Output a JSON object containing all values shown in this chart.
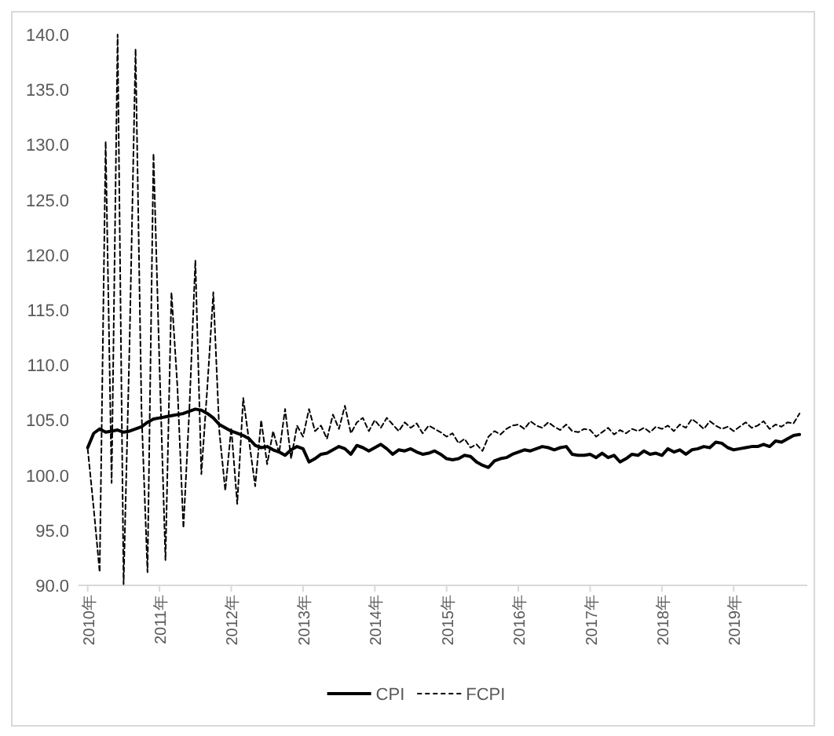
{
  "chart_data": {
    "type": "line",
    "x": [
      "2010-01",
      "2010-02",
      "2010-03",
      "2010-04",
      "2010-05",
      "2010-06",
      "2010-07",
      "2010-08",
      "2010-09",
      "2010-10",
      "2010-11",
      "2010-12",
      "2011-01",
      "2011-02",
      "2011-03",
      "2011-04",
      "2011-05",
      "2011-06",
      "2011-07",
      "2011-08",
      "2011-09",
      "2011-10",
      "2011-11",
      "2011-12",
      "2012-01",
      "2012-02",
      "2012-03",
      "2012-04",
      "2012-05",
      "2012-06",
      "2012-07",
      "2012-08",
      "2012-09",
      "2012-10",
      "2012-11",
      "2012-12",
      "2013-01",
      "2013-02",
      "2013-03",
      "2013-04",
      "2013-05",
      "2013-06",
      "2013-07",
      "2013-08",
      "2013-09",
      "2013-10",
      "2013-11",
      "2013-12",
      "2014-01",
      "2014-02",
      "2014-03",
      "2014-04",
      "2014-05",
      "2014-06",
      "2014-07",
      "2014-08",
      "2014-09",
      "2014-10",
      "2014-11",
      "2014-12",
      "2015-01",
      "2015-02",
      "2015-03",
      "2015-04",
      "2015-05",
      "2015-06",
      "2015-07",
      "2015-08",
      "2015-09",
      "2015-10",
      "2015-11",
      "2015-12",
      "2016-01",
      "2016-02",
      "2016-03",
      "2016-04",
      "2016-05",
      "2016-06",
      "2016-07",
      "2016-08",
      "2016-09",
      "2016-10",
      "2016-11",
      "2016-12",
      "2017-01",
      "2017-02",
      "2017-03",
      "2017-04",
      "2017-05",
      "2017-06",
      "2017-07",
      "2017-08",
      "2017-09",
      "2017-10",
      "2017-11",
      "2017-12",
      "2018-01",
      "2018-02",
      "2018-03",
      "2018-04",
      "2018-05",
      "2018-06",
      "2018-07",
      "2018-08",
      "2018-09",
      "2018-10",
      "2018-11",
      "2018-12",
      "2019-01",
      "2019-02",
      "2019-03",
      "2019-04",
      "2019-05",
      "2019-06",
      "2019-07",
      "2019-08",
      "2019-09",
      "2019-10",
      "2019-11",
      "2019-12"
    ],
    "series": [
      {
        "name": "CPI",
        "color": "#000000",
        "line_style": "solid",
        "values": [
          102.5,
          103.8,
          104.2,
          103.9,
          104.0,
          104.1,
          103.9,
          104.0,
          104.2,
          104.4,
          104.8,
          105.1,
          105.2,
          105.3,
          105.4,
          105.5,
          105.6,
          105.8,
          106.0,
          105.9,
          105.6,
          105.2,
          104.6,
          104.3,
          104.0,
          103.8,
          103.6,
          103.3,
          102.7,
          102.5,
          102.6,
          102.3,
          102.1,
          101.8,
          102.3,
          102.6,
          102.4,
          101.2,
          101.5,
          101.9,
          102.0,
          102.3,
          102.6,
          102.4,
          101.9,
          102.7,
          102.5,
          102.2,
          102.5,
          102.8,
          102.4,
          101.9,
          102.3,
          102.2,
          102.4,
          102.1,
          101.9,
          102.0,
          102.2,
          101.9,
          101.5,
          101.4,
          101.5,
          101.8,
          101.7,
          101.2,
          100.9,
          100.7,
          101.3,
          101.5,
          101.6,
          101.9,
          102.1,
          102.3,
          102.2,
          102.4,
          102.6,
          102.5,
          102.3,
          102.5,
          102.6,
          101.9,
          101.8,
          101.8,
          101.9,
          101.6,
          102.0,
          101.6,
          101.8,
          101.2,
          101.5,
          101.9,
          101.8,
          102.2,
          101.9,
          102.0,
          101.8,
          102.4,
          102.1,
          102.3,
          101.9,
          102.3,
          102.4,
          102.6,
          102.5,
          103.0,
          102.9,
          102.5,
          102.3,
          102.4,
          102.5,
          102.6,
          102.6,
          102.8,
          102.6,
          103.1,
          103.0,
          103.3,
          103.6,
          103.7
        ]
      },
      {
        "name": "FCPI",
        "color": "#000000",
        "line_style": "dashed",
        "values": [
          102.4,
          97.0,
          91.2,
          130.3,
          99.3,
          140.0,
          90.1,
          112.0,
          138.7,
          105.7,
          91.2,
          129.2,
          110.0,
          92.3,
          116.6,
          108.0,
          95.2,
          106.0,
          119.5,
          100.1,
          108.0,
          116.6,
          104.0,
          98.6,
          104.3,
          97.4,
          107.0,
          103.0,
          99.0,
          105.0,
          101.0,
          104.0,
          102.0,
          106.0,
          101.5,
          104.5,
          103.5,
          106.0,
          104.0,
          104.5,
          103.3,
          105.5,
          104.2,
          106.3,
          103.8,
          104.8,
          105.2,
          104.0,
          105.0,
          104.3,
          105.2,
          104.6,
          104.0,
          104.8,
          104.3,
          104.7,
          103.8,
          104.5,
          104.2,
          103.9,
          103.5,
          103.8,
          102.9,
          103.3,
          102.5,
          102.8,
          102.2,
          103.5,
          104.0,
          103.7,
          104.2,
          104.5,
          104.6,
          104.2,
          104.9,
          104.5,
          104.3,
          104.8,
          104.4,
          104.1,
          104.6,
          104.0,
          103.9,
          104.2,
          104.1,
          103.5,
          103.9,
          104.3,
          103.7,
          104.1,
          103.8,
          104.2,
          104.0,
          104.3,
          103.9,
          104.4,
          104.2,
          104.5,
          104.0,
          104.6,
          104.3,
          105.1,
          104.7,
          104.2,
          104.9,
          104.5,
          104.2,
          104.4,
          104.0,
          104.4,
          104.8,
          104.3,
          104.5,
          104.9,
          104.2,
          104.6,
          104.4,
          104.8,
          104.7,
          105.6
        ]
      }
    ],
    "xlim": [
      "2009-11-15",
      "2020-01-10"
    ],
    "xticks": [
      {
        "value": "2010-01",
        "label": "2010年"
      },
      {
        "value": "2011-01",
        "label": "2011年"
      },
      {
        "value": "2012-01",
        "label": "2012年"
      },
      {
        "value": "2013-01",
        "label": "2013年"
      },
      {
        "value": "2014-01",
        "label": "2014年"
      },
      {
        "value": "2015-01",
        "label": "2015年"
      },
      {
        "value": "2016-01",
        "label": "2016年"
      },
      {
        "value": "2017-01",
        "label": "2017年"
      },
      {
        "value": "2018-01",
        "label": "2018年"
      },
      {
        "value": "2019-01",
        "label": "2019年"
      }
    ],
    "ylim": [
      90,
      140
    ],
    "yticks": [
      {
        "value": 90,
        "label": "90.0"
      },
      {
        "value": 95,
        "label": "95.0"
      },
      {
        "value": 100,
        "label": "100.0"
      },
      {
        "value": 105,
        "label": "105.0"
      },
      {
        "value": 110,
        "label": "110.0"
      },
      {
        "value": 115,
        "label": "115.0"
      },
      {
        "value": 120,
        "label": "120.0"
      },
      {
        "value": 125,
        "label": "125.0"
      },
      {
        "value": 130,
        "label": "130.0"
      },
      {
        "value": 135,
        "label": "135.0"
      },
      {
        "value": 140,
        "label": "140.0"
      }
    ],
    "grid": false,
    "legend": "bottom"
  }
}
